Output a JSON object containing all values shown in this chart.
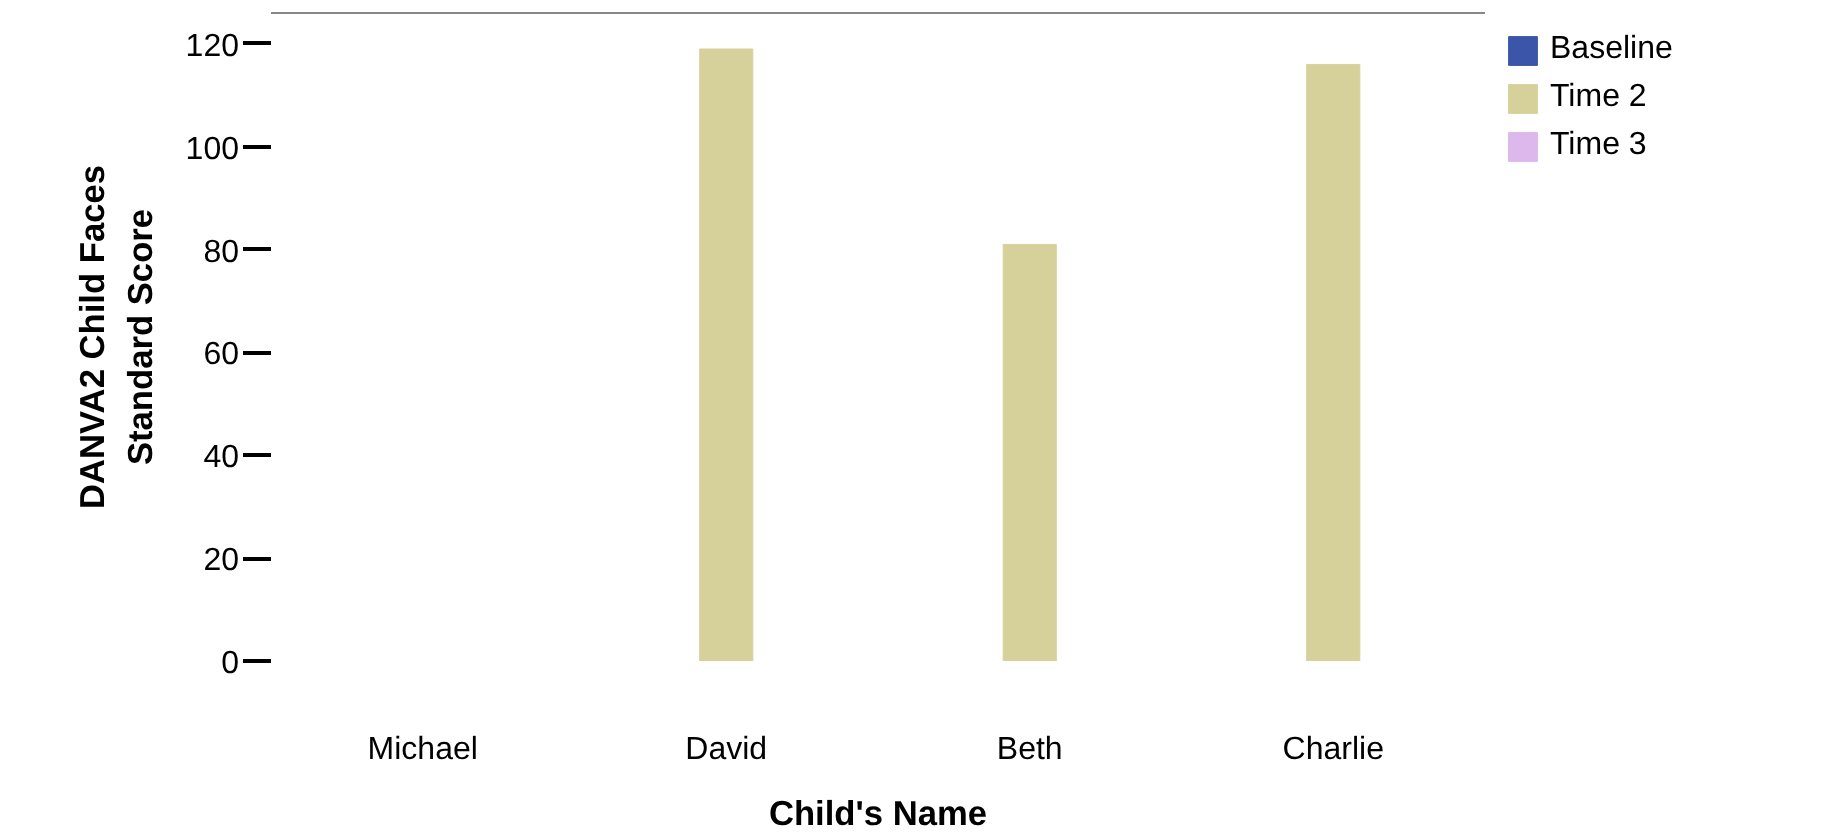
{
  "chart_data": {
    "type": "bar",
    "xlabel": "Child's Name",
    "ylabel": "DANVA2 Child Faces\nStandard Score",
    "categories": [
      "Michael",
      "David",
      "Beth",
      "Charlie"
    ],
    "series": [
      {
        "name": "Baseline",
        "color": "#3b56a8",
        "values": [
          null,
          null,
          null,
          null
        ]
      },
      {
        "name": "Time 2",
        "color": "#d6d19a",
        "values": [
          null,
          119,
          81,
          116
        ]
      },
      {
        "name": "Time 3",
        "color": "#dcb8ec",
        "values": [
          null,
          null,
          null,
          null
        ]
      }
    ],
    "ylim": [
      0,
      126
    ],
    "yticks": [
      0,
      20,
      40,
      60,
      80,
      100,
      120
    ],
    "grid": false,
    "legend": "top right"
  }
}
